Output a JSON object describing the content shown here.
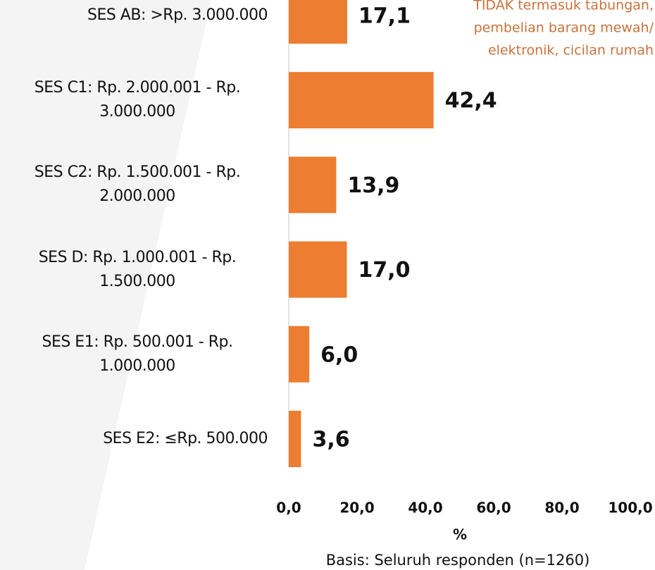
{
  "chart_data": {
    "type": "bar",
    "orientation": "horizontal",
    "categories": [
      "SES AB: >Rp. 3.000.000",
      "SES C1: Rp. 2.000.001 - Rp. 3.000.000",
      "SES C2: Rp. 1.500.001 - Rp. 2.000.000",
      "SES D: Rp. 1.000.001 - Rp. 1.500.000",
      "SES E1: Rp. 500.001 - Rp. 1.000.000",
      "SES E2: ≤Rp. 500.000"
    ],
    "values": [
      17.1,
      42.4,
      13.9,
      17.0,
      6.0,
      3.6
    ],
    "value_labels": [
      "17,1",
      "42,4",
      "13,9",
      "17,0",
      "6,0",
      "3,6"
    ],
    "color": "#ed7d31",
    "xlim": [
      0,
      100
    ],
    "xticks": [
      {
        "value": 0,
        "label": "0,0"
      },
      {
        "value": 20,
        "label": "20,0"
      },
      {
        "value": 40,
        "label": "40,0"
      },
      {
        "value": 60,
        "label": "60,0"
      },
      {
        "value": 80,
        "label": "80,0"
      },
      {
        "value": 100,
        "label": "100,0"
      }
    ],
    "x_label": "%",
    "footnote": "Basis: Seluruh responden (n=1260)",
    "annotation": [
      "TIDAK termasuk tabungan,",
      "pembelian barang mewah/",
      "elektronik, cicilan rumah"
    ]
  }
}
